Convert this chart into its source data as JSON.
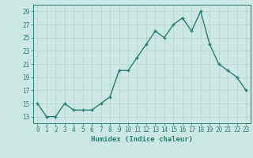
{
  "xlabel": "Humidex (Indice chaleur)",
  "x": [
    0,
    1,
    2,
    3,
    4,
    5,
    6,
    7,
    8,
    9,
    10,
    11,
    12,
    13,
    14,
    15,
    16,
    17,
    18,
    19,
    20,
    21,
    22,
    23
  ],
  "y": [
    15,
    13,
    13,
    15,
    14,
    14,
    14,
    15,
    16,
    20,
    20,
    22,
    24,
    26,
    25,
    27,
    28,
    26,
    29,
    24,
    21,
    20,
    19,
    17
  ],
  "xlim": [
    -0.5,
    23.5
  ],
  "ylim": [
    12,
    30
  ],
  "yticks": [
    13,
    15,
    17,
    19,
    21,
    23,
    25,
    27,
    29
  ],
  "xticks": [
    0,
    1,
    2,
    3,
    4,
    5,
    6,
    7,
    8,
    9,
    10,
    11,
    12,
    13,
    14,
    15,
    16,
    17,
    18,
    19,
    20,
    21,
    22,
    23
  ],
  "line_color": "#2d7d6e",
  "marker": "+",
  "bg_color": "#cce8e4",
  "grid_color": "#b8d8d4",
  "tick_color": "#2d7d6e",
  "label_color": "#2d7d6e",
  "font": "monospace",
  "xlabel_fontsize": 6.5,
  "tick_fontsize": 5.5,
  "linewidth": 1.0,
  "markersize": 3.5,
  "markeredgewidth": 1.0
}
